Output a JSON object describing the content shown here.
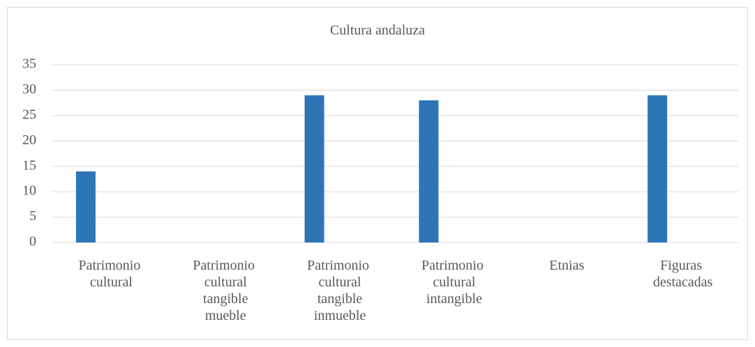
{
  "chart_data": {
    "type": "bar",
    "title": "Cultura andaluza",
    "categories": [
      "Patrimonio cultural",
      "Patrimonio cultural tangible mueble",
      "Patrimonio cultural tangible inmueble",
      "Patrimonio cultural intangible",
      "Etnias",
      "Figuras destacadas"
    ],
    "values": [
      14,
      0,
      29,
      28,
      0,
      29
    ],
    "color": "#2e75b6",
    "ylim": [
      0,
      35
    ],
    "yticks": [
      0,
      5,
      10,
      15,
      20,
      25,
      30,
      35
    ],
    "grid": true
  }
}
